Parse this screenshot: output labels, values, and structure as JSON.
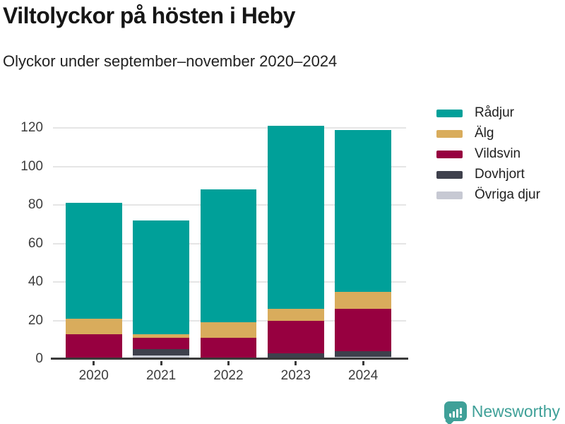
{
  "header": {
    "title": "Viltolyckor på hösten i Heby",
    "subtitle": "Olyckor under september–november 2020–2024"
  },
  "chart_data": {
    "type": "bar",
    "stacked": true,
    "title": "Viltolyckor på hösten i Heby",
    "subtitle": "Olyckor under september–november 2020–2024",
    "categories": [
      "2020",
      "2021",
      "2022",
      "2023",
      "2024"
    ],
    "series_bottom_to_top": [
      {
        "name": "Övriga djur",
        "color": "#c7c9d3",
        "values": [
          0,
          2,
          0,
          0,
          1
        ]
      },
      {
        "name": "Dovhjort",
        "color": "#3e404c",
        "values": [
          0,
          3,
          0,
          3,
          3
        ]
      },
      {
        "name": "Vildsvin",
        "color": "#970040",
        "values": [
          13,
          6,
          11,
          17,
          22
        ]
      },
      {
        "name": "Älg",
        "color": "#d9ac5c",
        "values": [
          8,
          2,
          8,
          6,
          9
        ]
      },
      {
        "name": "Rådjur",
        "color": "#00a099",
        "values": [
          60,
          59,
          69,
          95,
          84
        ]
      }
    ],
    "totals": [
      81,
      72,
      88,
      121,
      119
    ],
    "y_ticks": [
      0,
      20,
      40,
      60,
      80,
      100,
      120
    ],
    "ylim": [
      0,
      131
    ],
    "xlabel": "",
    "ylabel": "",
    "grid": "horizontal",
    "legend_order": [
      "Rådjur",
      "Älg",
      "Vildsvin",
      "Dovhjort",
      "Övriga djur"
    ],
    "legend_position": "top-right"
  },
  "styles": {
    "gridline_color": "#e5e5e5",
    "axis_color": "#3a3a3a",
    "tick_label_color": "#3d3d3d",
    "accent_teal": "#00a099"
  },
  "branding": {
    "name": "Newsworthy",
    "color": "#3fa098",
    "icon": "newsworthy-bars-icon"
  }
}
